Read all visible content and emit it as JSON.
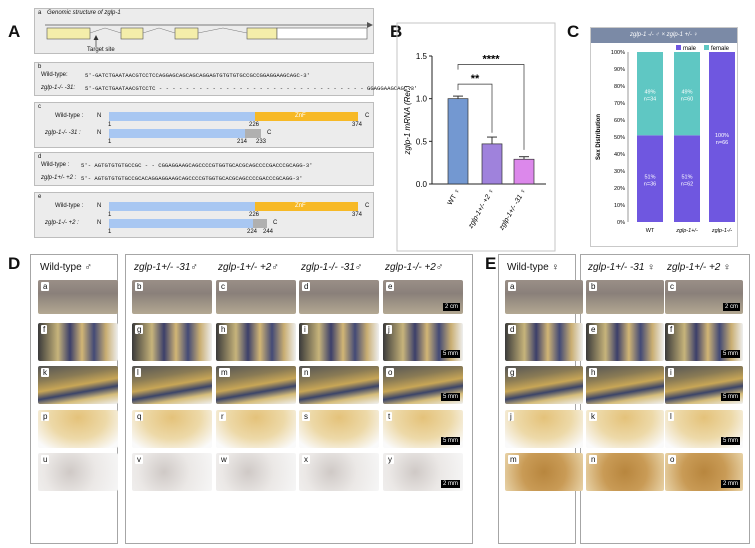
{
  "panels": {
    "A": "A",
    "B": "B",
    "C": "C",
    "D": "D",
    "E": "E"
  },
  "panelA": {
    "a_letter": "a",
    "a_title": "Genomic structure of zglp-1",
    "target_site": "Target site",
    "b_letter": "b",
    "wt_label": "Wild-type:",
    "wt_seq": "5'-GATCTGAATAACGTCCTCCAGGAGCAGCAGCAGGAGTGTGTGTGCCGCCGGAGGAAGCAGC-3'",
    "mut31_label": "zglp-1-/- -31:",
    "mut31_seq": "5'-GATCTGAATAACGTCCTC - - - - - - - - - - - - - - - - - - - - - - - - - - - - - - - GGAGGAAGCAGC-3'",
    "c_letter": "c",
    "wt_prot": "Wild-type :",
    "mut31_prot": "zglp-1-/- -31 :",
    "N": "N",
    "C": "C",
    "znf": "ZnF",
    "c_nums": {
      "one": "1",
      "n226": "226",
      "n374": "374",
      "n214": "214",
      "n233": "233"
    },
    "d_letter": "d",
    "wt_label_d": "Wild-type :",
    "wt_seq_d": "5'- AGTGTGTGTGCCGC - - CGGAGGAAGCAGCCCCGTGGTGCACGCAGCCCCGACCCGCAGG-3'",
    "mut2_label": "zglp-1+/- +2 :",
    "mut2_seq": "5'- AGTGTGTGTGCCGCACAGGAGGAAGCAGCCCCGTGGTGCACGCAGCCCCGACCCGCAGG-3'",
    "e_letter": "e",
    "wt_prot_e": "Wild-type :",
    "mut2_prot": "zglp-1-/- +2 :",
    "e_nums": {
      "one": "1",
      "n226": "226",
      "n374": "374",
      "n224": "224",
      "n244": "244"
    }
  },
  "chart_data": [
    {
      "type": "bar",
      "ylabel": "zglp-1 mRNA (Rel.)",
      "categories": [
        "WT ♀",
        "zglp-1+/- +2 ♀",
        "zglp-1+/- -31 ♀"
      ],
      "values": [
        1.0,
        0.47,
        0.29
      ],
      "errors": [
        0.03,
        0.08,
        0.03
      ],
      "colors": [
        "#5b86c9",
        "#8e6cd6",
        "#d673e8"
      ],
      "ylim": [
        0,
        1.5
      ],
      "yticks": [
        "0.0",
        "0.5",
        "1.0",
        "1.5"
      ],
      "annotations": [
        "**",
        "****"
      ]
    },
    {
      "type": "bar",
      "title": "zglp-1 -/- ♂ × zglp-1 +/- ♀",
      "ylabel": "Sex Distribution",
      "legend": [
        "male",
        "female"
      ],
      "categories": [
        "WT",
        "zglp-1+/-",
        "zglp-1-/-"
      ],
      "series": [
        {
          "name": "male",
          "values": [
            51,
            51,
            100
          ],
          "labels": [
            "51%\nn=36",
            "51%\nn=62",
            "100%\nn=66"
          ],
          "color": "#6f57e0"
        },
        {
          "name": "female",
          "values": [
            49,
            49,
            0
          ],
          "labels": [
            "49%\nn=34",
            "49%\nn=60",
            ""
          ],
          "color": "#5fc7c3"
        }
      ],
      "yticks": [
        "0%",
        "10%",
        "20%",
        "30%",
        "40%",
        "50%",
        "60%",
        "70%",
        "80%",
        "90%",
        "100%"
      ]
    }
  ],
  "panelD": {
    "headers": [
      "Wild-type ♂",
      "zglp-1+/- -31♂",
      "zglp-1+/- +2♂",
      "zglp-1-/- -31♂",
      "zglp-1-/- +2♂"
    ],
    "letters": [
      "a",
      "b",
      "c",
      "d",
      "e",
      "f",
      "g",
      "h",
      "i",
      "j",
      "k",
      "l",
      "m",
      "n",
      "o",
      "p",
      "q",
      "r",
      "s",
      "t",
      "u",
      "v",
      "w",
      "x",
      "y"
    ],
    "scales": [
      "2 cm",
      "5 mm",
      "5 mm",
      "5 mm",
      "2 mm"
    ]
  },
  "panelE": {
    "headers": [
      "Wild-type ♀",
      "zglp-1+/- -31 ♀",
      "zglp-1+/- +2 ♀"
    ],
    "letters": [
      "a",
      "b",
      "c",
      "d",
      "e",
      "f",
      "g",
      "h",
      "i",
      "j",
      "k",
      "l",
      "m",
      "n",
      "o"
    ],
    "scales": [
      "2 cm",
      "5 mm",
      "5 mm",
      "5 mm",
      "2 mm"
    ]
  }
}
